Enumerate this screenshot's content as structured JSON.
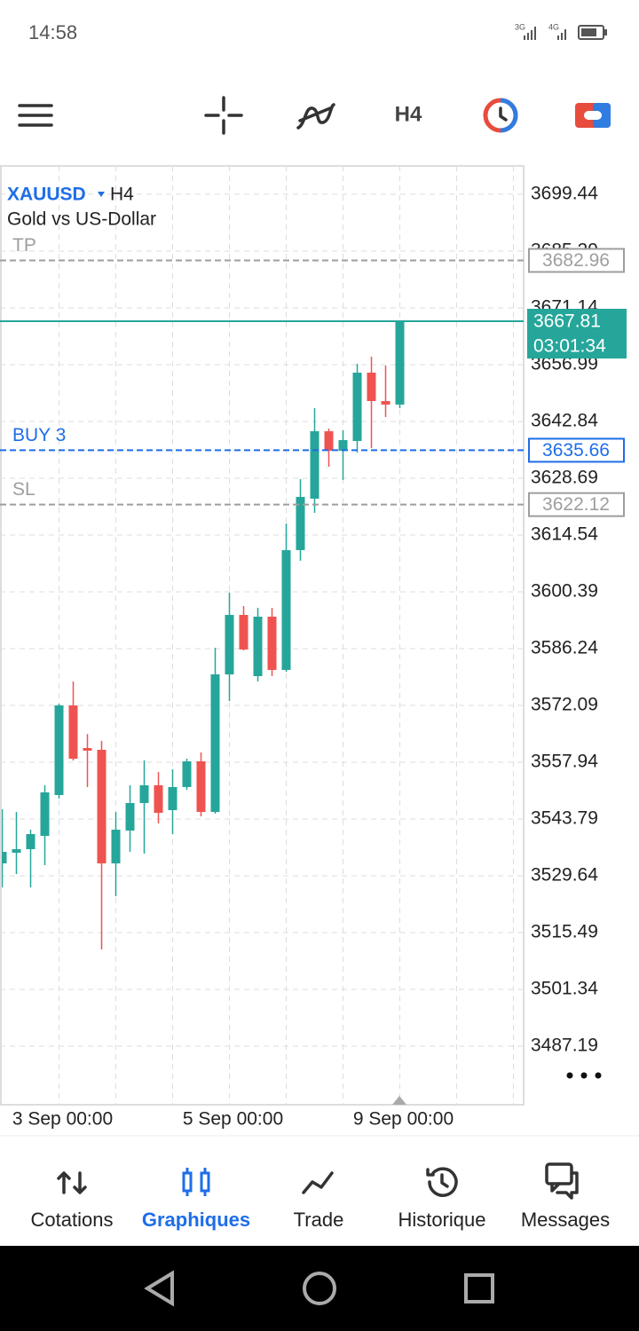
{
  "status_bar": {
    "time": "14:58",
    "network": [
      "3G",
      "4G"
    ]
  },
  "toolbar": {
    "timeframe": "H4"
  },
  "chart_data": {
    "type": "candlestick",
    "symbol": "XAUUSD",
    "timeframe": "H4",
    "description": "Gold vs US-Dollar",
    "up_color": "#26a69a",
    "down_color": "#ef5350",
    "categories": [
      null,
      null,
      null,
      null,
      "3 Sep 00:00",
      null,
      null,
      null,
      null,
      null,
      null,
      null,
      null,
      null,
      null,
      null,
      "5 Sep 00:00",
      null,
      null,
      null,
      null,
      null,
      null,
      null,
      null,
      null,
      null,
      null,
      "9 Sep 00:00"
    ],
    "open": [
      3532.73,
      3535.38,
      3536.27,
      3539.58,
      3549.76,
      3572.09,
      3561.47,
      3561.03,
      3532.73,
      3540.91,
      3547.77,
      3552.19,
      3546.0,
      3551.75,
      3558.16,
      3545.55,
      3579.82,
      3594.64,
      3579.38,
      3594.2,
      3580.93,
      3610.78,
      3623.6,
      3640.41,
      3635.54,
      3637.97,
      3655.0,
      3647.92,
      3647.04
    ],
    "high": [
      3546.22,
      3545.55,
      3541.13,
      3552.19,
      3572.53,
      3578.06,
      3564.95,
      3563.24,
      3545.55,
      3552.19,
      3558.38,
      3555.5,
      3556.17,
      3558.82,
      3560.37,
      3586.46,
      3600.17,
      3596.85,
      3596.41,
      3596.41,
      3617.41,
      3628.47,
      3646.15,
      3641.07,
      3640.63,
      3657.21,
      3658.98,
      3656.77,
      3667.81
    ],
    "low": [
      3526.76,
      3530.08,
      3526.76,
      3532.29,
      3548.87,
      3558.38,
      3551.75,
      3511.28,
      3524.55,
      3535.61,
      3535.16,
      3542.68,
      3540.03,
      3551.08,
      3544.45,
      3545.11,
      3573.19,
      3585.8,
      3578.06,
      3579.38,
      3580.49,
      3608.13,
      3620.07,
      3631.56,
      3628.25,
      3635.1,
      3636.21,
      3643.94,
      3646.15
    ],
    "close": [
      3535.61,
      3536.27,
      3540.03,
      3550.42,
      3572.09,
      3558.82,
      3560.81,
      3532.73,
      3541.13,
      3547.77,
      3552.19,
      3545.33,
      3551.75,
      3558.16,
      3545.55,
      3579.82,
      3594.64,
      3586.02,
      3594.2,
      3580.93,
      3610.78,
      3624.04,
      3640.41,
      3635.54,
      3638.2,
      3655.0,
      3647.92,
      3647.04,
      3667.81
    ],
    "ylim": [
      3472.6,
      3706.5
    ],
    "yticks": [
      3699.44,
      3685.29,
      3671.14,
      3656.99,
      3642.84,
      3628.69,
      3614.54,
      3600.39,
      3586.24,
      3572.09,
      3557.94,
      3543.79,
      3529.64,
      3515.49,
      3501.34,
      3487.19
    ],
    "grid": true,
    "levels": [
      {
        "label": "TP",
        "value": 3682.96,
        "color": "#9e9e9e"
      },
      {
        "label": "BUY 3",
        "value": 3635.66,
        "color": "#1e6ee8"
      },
      {
        "label": "SL",
        "value": 3622.12,
        "color": "#9e9e9e"
      }
    ],
    "last_price": 3667.81,
    "last_price_color": "#26a69a",
    "timer": "03:01:34"
  },
  "bottom_nav": [
    {
      "label": "Cotations",
      "active": false
    },
    {
      "label": "Graphiques",
      "active": true
    },
    {
      "label": "Trade",
      "active": false
    },
    {
      "label": "Historique",
      "active": false
    },
    {
      "label": "Messages",
      "active": false
    }
  ]
}
